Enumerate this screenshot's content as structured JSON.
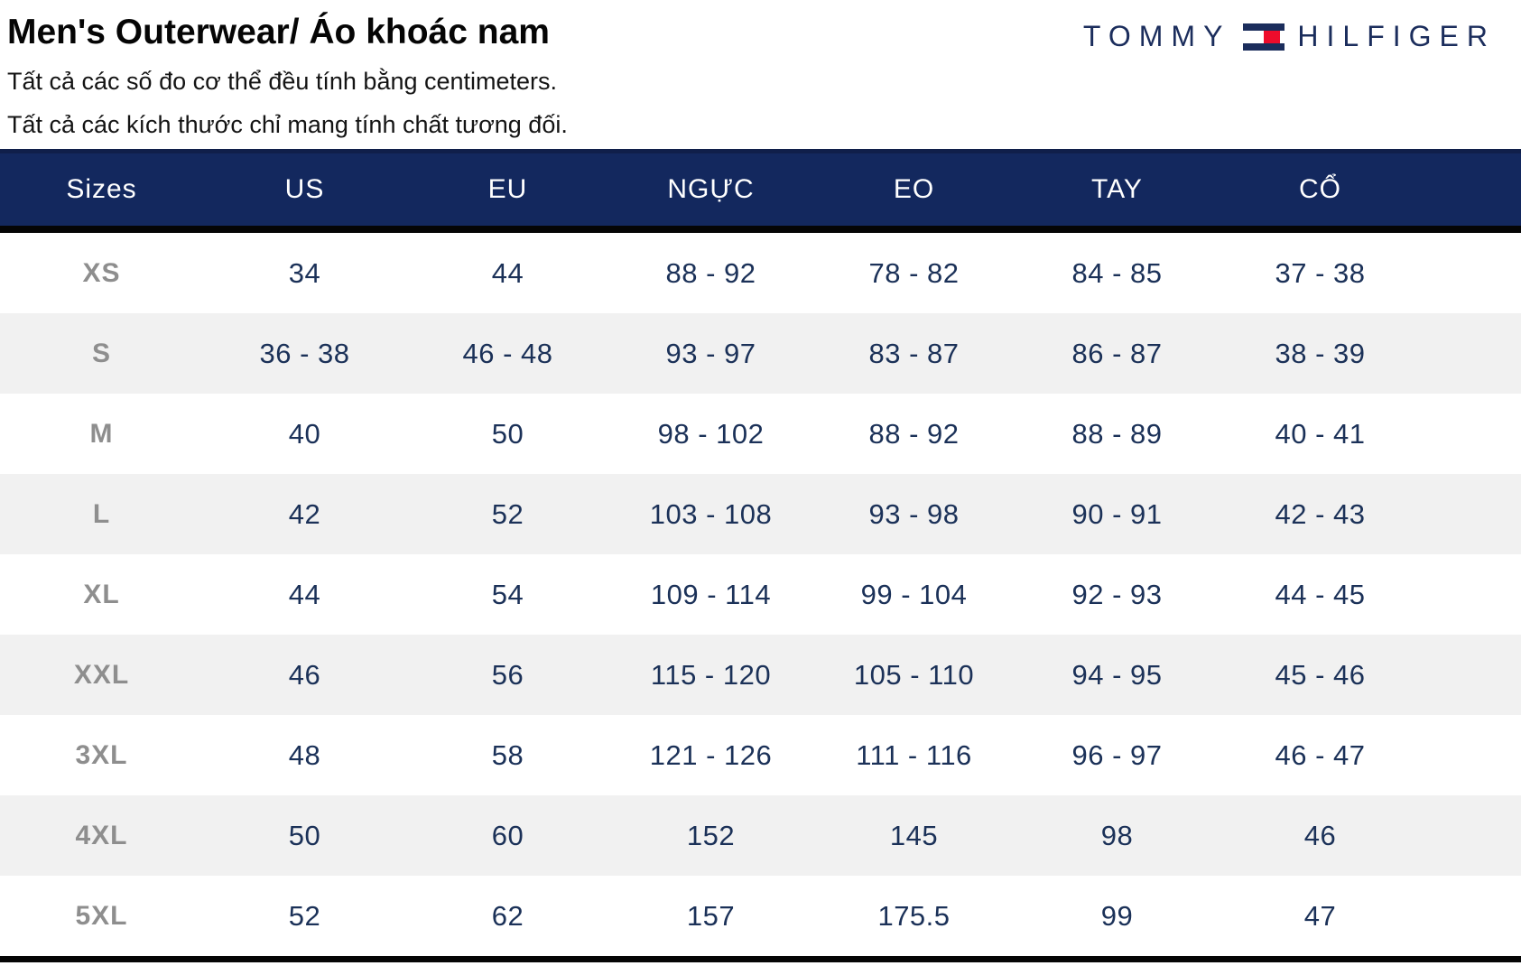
{
  "header": {
    "title": "Men's Outerwear/ Áo khoác nam",
    "note1": "Tất cả các số đo cơ thể đều tính bằng centimeters.",
    "note2": "Tất cả các kích thước chỉ mang tính chất tương đối."
  },
  "brand": {
    "name": "Tommy Hilfiger",
    "word_left": "TOMMY",
    "word_right": "HILFIGER",
    "colors": {
      "navy": "#1b2d5c",
      "red": "#ee0c2c",
      "white": "#ffffff"
    }
  },
  "table": {
    "columns": [
      "Sizes",
      "US",
      "EU",
      "NGỰC",
      "EO",
      "TAY",
      "CỔ"
    ],
    "rows": [
      {
        "size": "XS",
        "values": [
          "34",
          "44",
          "88 - 92",
          "78 - 82",
          "84 - 85",
          "37 - 38"
        ]
      },
      {
        "size": "S",
        "values": [
          "36 - 38",
          "46 - 48",
          "93 - 97",
          "83 - 87",
          "86 - 87",
          "38 - 39"
        ]
      },
      {
        "size": "M",
        "values": [
          "40",
          "50",
          "98 - 102",
          "88 - 92",
          "88 - 89",
          "40 - 41"
        ]
      },
      {
        "size": "L",
        "values": [
          "42",
          "52",
          "103 - 108",
          "93 - 98",
          "90 - 91",
          "42 - 43"
        ]
      },
      {
        "size": "XL",
        "values": [
          "44",
          "54",
          "109 - 114",
          "99 - 104",
          "92 - 93",
          "44 - 45"
        ]
      },
      {
        "size": "XXL",
        "values": [
          "46",
          "56",
          "115 - 120",
          "105 - 110",
          "94 - 95",
          "45 - 46"
        ]
      },
      {
        "size": "3XL",
        "values": [
          "48",
          "58",
          "121 - 126",
          "111 - 116",
          "96 - 97",
          "46 - 47"
        ]
      },
      {
        "size": "4XL",
        "values": [
          "50",
          "60",
          "152",
          "145",
          "98",
          "46"
        ]
      },
      {
        "size": "5XL",
        "values": [
          "52",
          "62",
          "157",
          "175.5",
          "99",
          "47"
        ]
      }
    ],
    "colors": {
      "header_bg": "#13285e",
      "header_text": "#ffffff",
      "row_alt_bg": "#f1f1f1",
      "cell_text": "#1b3158",
      "size_label_text": "#8e8e8e",
      "rule_black": "#050505"
    }
  }
}
